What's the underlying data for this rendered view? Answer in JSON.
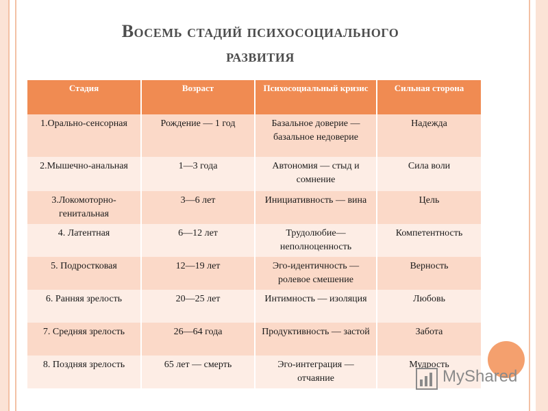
{
  "title": {
    "line1": "Восемь стадий психосоциального",
    "line2": "развития"
  },
  "table": {
    "headers": [
      "Стадия",
      "Возраст",
      "Психосоциальный кризис",
      "Сильная сторона"
    ],
    "rows": [
      {
        "stage": "1.Орально-сенсорная",
        "age": "Рождение — 1 год",
        "crisis": "Базальное доверие — базальное недоверие",
        "strength": "Надежда"
      },
      {
        "stage": "2.Мышечно-анальная",
        "age": "1—3 года",
        "crisis": "Автономия — стыд и сомнение",
        "strength": "Сила воли"
      },
      {
        "stage": "3.Локомоторно-генитальная",
        "age": "3—6 лет",
        "crisis": "Инициативность — вина",
        "strength": "Цель"
      },
      {
        "stage": "4. Латентная",
        "age": "6—12 лет",
        "crisis": "Трудолюбие—неполноценность",
        "strength": "Компетентность"
      },
      {
        "stage": "5. Подростковая",
        "age": "12—19 лет",
        "crisis": "Эго-идентичность — ролевое смешение",
        "strength": "Верность"
      },
      {
        "stage": "6. Ранняя зрелость",
        "age": "20—25 лет",
        "crisis": "Интимность — изоляция",
        "strength": "Любовь"
      },
      {
        "stage": "7. Средняя зрелость",
        "age": "26—64 года",
        "crisis": "Продуктивность — застой",
        "strength": "Забота"
      },
      {
        "stage": "8. Поздняя зрелость",
        "age": "65 лет — смерть",
        "crisis": "Эго-интеграция — отчаяние",
        "strength": "Мудрость"
      }
    ]
  },
  "watermark": {
    "text": "MyShared",
    "icon": "bar-chart-icon"
  },
  "colors": {
    "header_bg": "#f08b52",
    "row_dark": "#fbd9c8",
    "row_light": "#fdede5",
    "accent_circle": "#f4a06e"
  }
}
